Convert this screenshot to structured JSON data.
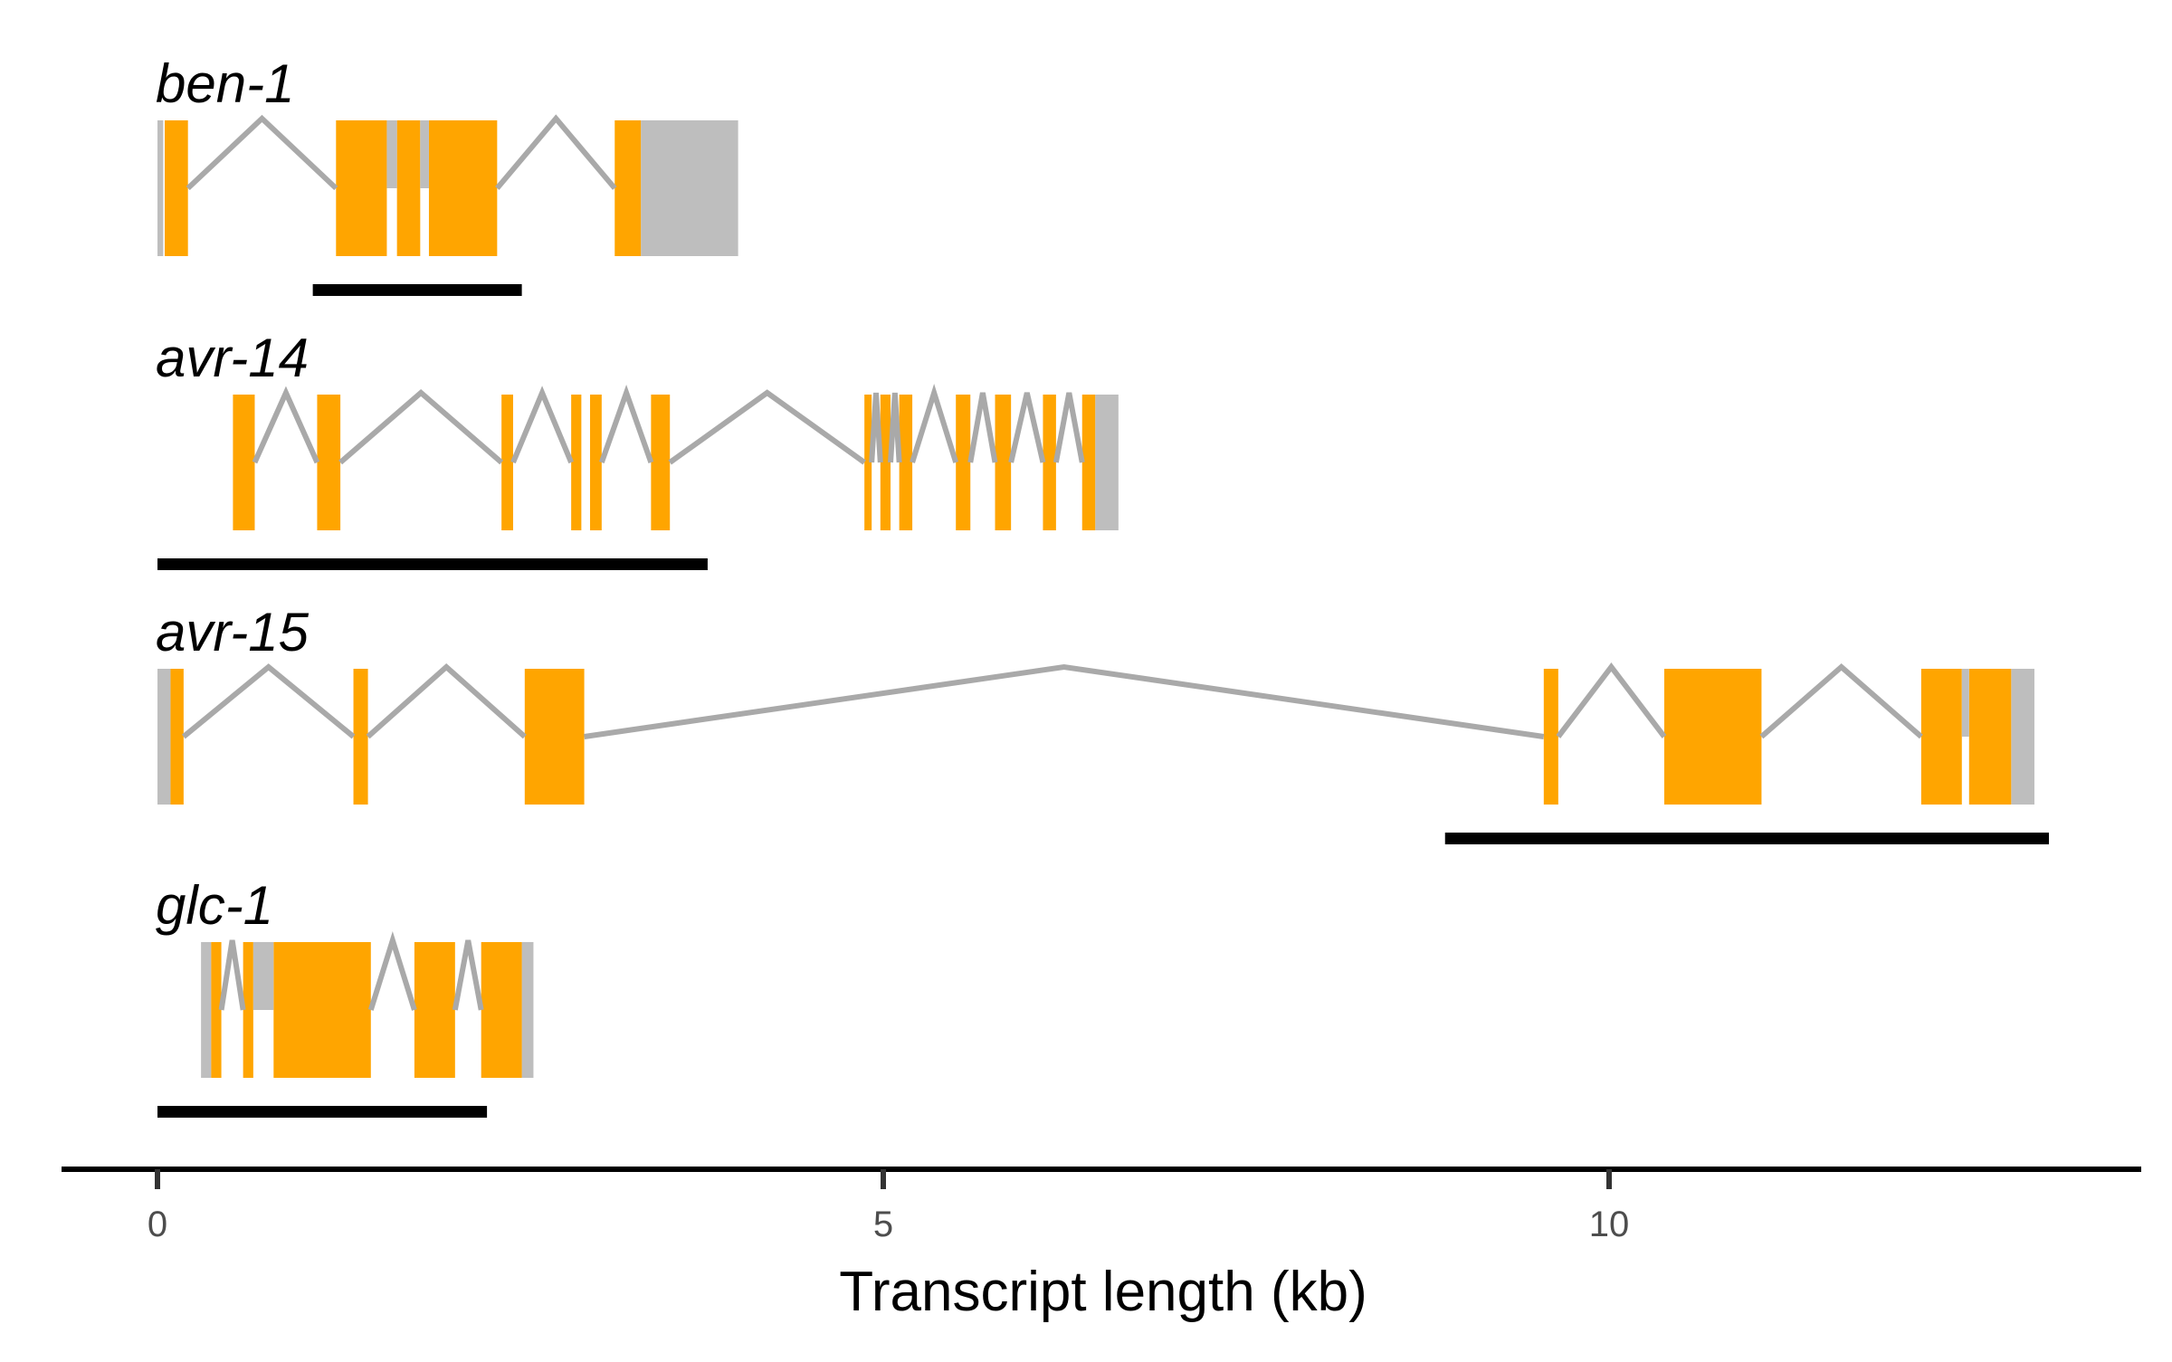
{
  "chart_data": {
    "type": "gene-structure",
    "xlabel": "Transcript length (kb)",
    "xlim": [
      -0.65,
      13.65
    ],
    "x_ticks": [
      0,
      5,
      10
    ],
    "x_tick_labels": [
      "0",
      "5",
      "10"
    ],
    "grid": false,
    "colors": {
      "cds": "#FFA500",
      "utr": "#BEBEBE",
      "intron": "#A9A9A9",
      "bar": "#000000",
      "axis": "#000000"
    },
    "genes": [
      {
        "name": "ben-1",
        "span": [
          0,
          4.0
        ],
        "utr": [
          [
            0,
            0.04
          ],
          [
            3.33,
            4.0
          ]
        ],
        "cds": [
          [
            0.05,
            0.21
          ],
          [
            1.23,
            1.58
          ],
          [
            1.65,
            1.81
          ],
          [
            1.87,
            2.34
          ],
          [
            3.15,
            3.33
          ]
        ],
        "utr_gaps": [
          [
            1.58,
            1.65
          ],
          [
            1.81,
            1.87
          ]
        ],
        "introns": [
          [
            0.21,
            1.23
          ],
          [
            2.34,
            3.15
          ]
        ],
        "bar": [
          1.07,
          2.51
        ]
      },
      {
        "name": "avr-14",
        "span": [
          0.52,
          6.62
        ],
        "utr": [
          [
            6.46,
            6.62
          ]
        ],
        "cds": [
          [
            0.52,
            0.67
          ],
          [
            1.1,
            1.26
          ],
          [
            2.37,
            2.45
          ],
          [
            2.85,
            2.92
          ],
          [
            2.98,
            3.06
          ],
          [
            3.4,
            3.53
          ],
          [
            4.87,
            4.92
          ],
          [
            4.98,
            5.05
          ],
          [
            5.11,
            5.2
          ],
          [
            5.5,
            5.6
          ],
          [
            5.77,
            5.88
          ],
          [
            6.1,
            6.19
          ],
          [
            6.37,
            6.46
          ]
        ],
        "utr_gaps": [],
        "introns": [
          [
            0.67,
            1.1
          ],
          [
            1.26,
            2.37
          ],
          [
            2.45,
            2.85
          ],
          [
            3.06,
            3.4
          ],
          [
            3.53,
            4.87
          ],
          [
            4.92,
            4.98
          ],
          [
            5.05,
            5.11
          ],
          [
            5.2,
            5.5
          ],
          [
            5.6,
            5.77
          ],
          [
            5.88,
            6.1
          ],
          [
            6.19,
            6.37
          ]
        ],
        "bar": [
          0,
          3.79
        ]
      },
      {
        "name": "avr-15",
        "span": [
          0,
          12.93
        ],
        "utr": [
          [
            0,
            0.09
          ],
          [
            12.77,
            12.93
          ]
        ],
        "cds": [
          [
            0.09,
            0.18
          ],
          [
            1.35,
            1.45
          ],
          [
            2.53,
            2.94
          ],
          [
            9.55,
            9.65
          ],
          [
            10.38,
            11.05
          ],
          [
            12.15,
            12.43
          ],
          [
            12.48,
            12.77
          ]
        ],
        "utr_gaps": [
          [
            12.43,
            12.48
          ]
        ],
        "introns": [
          [
            0.18,
            1.35
          ],
          [
            1.45,
            2.53
          ],
          [
            2.94,
            9.55
          ],
          [
            9.65,
            10.38
          ],
          [
            11.05,
            12.15
          ]
        ],
        "bar": [
          8.87,
          13.03
        ]
      },
      {
        "name": "glc-1",
        "span": [
          0.3,
          2.59
        ],
        "utr": [
          [
            0.3,
            0.37
          ],
          [
            2.51,
            2.59
          ]
        ],
        "cds": [
          [
            0.37,
            0.44
          ],
          [
            0.59,
            0.66
          ],
          [
            0.8,
            1.47
          ],
          [
            1.77,
            2.05
          ],
          [
            2.23,
            2.51
          ]
        ],
        "utr_gaps": [
          [
            0.66,
            0.8
          ]
        ],
        "introns": [
          [
            0.44,
            0.59
          ],
          [
            1.47,
            1.77
          ],
          [
            2.05,
            2.23
          ]
        ],
        "bar": [
          0,
          2.27
        ]
      }
    ]
  }
}
